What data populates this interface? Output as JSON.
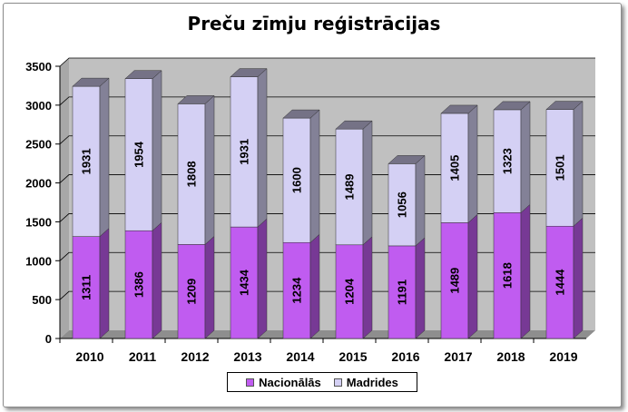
{
  "chart_data": {
    "type": "bar",
    "stacked": true,
    "three_d": true,
    "title": "Preču zīmju reģistrācijas",
    "categories": [
      "2010",
      "2011",
      "2012",
      "2013",
      "2014",
      "2015",
      "2016",
      "2017",
      "2018",
      "2019"
    ],
    "series": [
      {
        "name": "Nacionālās",
        "color": "#c05cf0",
        "values": [
          1311,
          1386,
          1209,
          1434,
          1234,
          1204,
          1191,
          1489,
          1618,
          1444
        ]
      },
      {
        "name": "Madrides",
        "color": "#d4d0f4",
        "values": [
          1931,
          1954,
          1808,
          1931,
          1600,
          1489,
          1056,
          1405,
          1323,
          1501
        ]
      }
    ],
    "ylim": [
      0,
      3500
    ],
    "yticks": [
      "0",
      "500",
      "1000",
      "1500",
      "2000",
      "2500",
      "3000",
      "3500"
    ],
    "grid": true,
    "legend_position": "bottom"
  }
}
